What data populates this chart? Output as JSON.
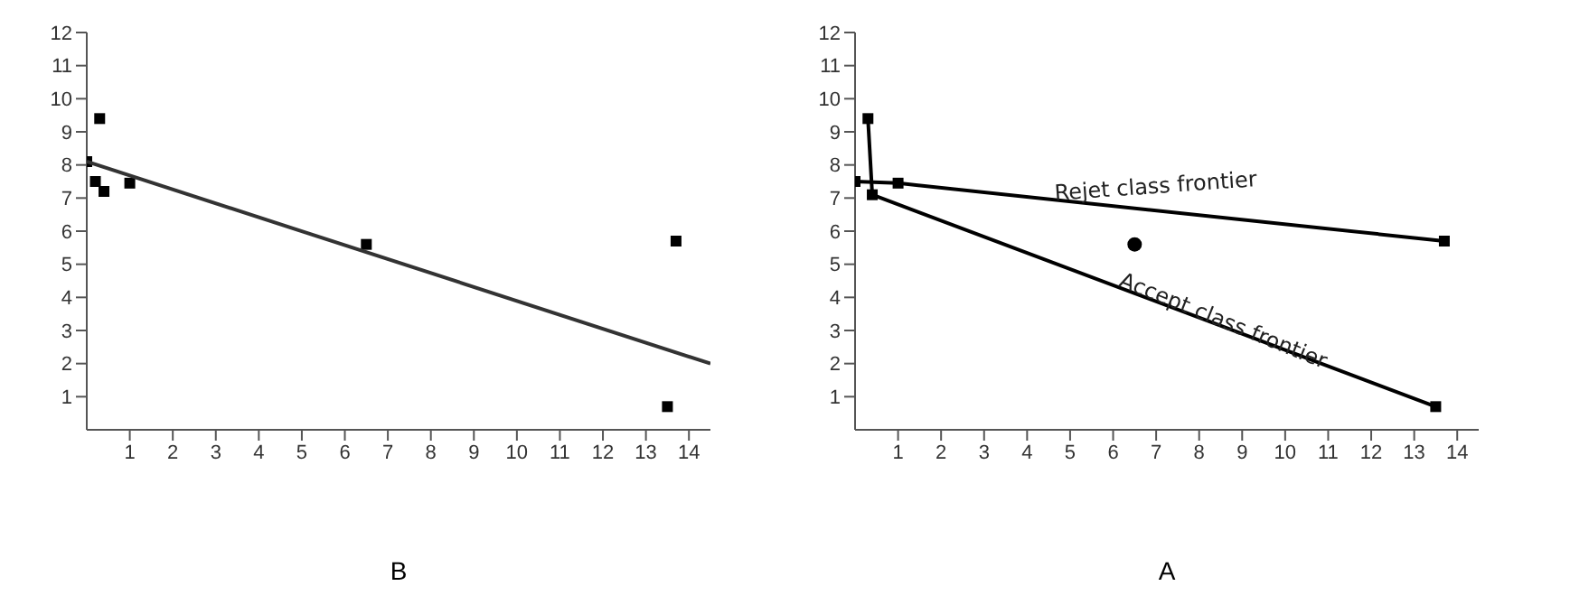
{
  "chart_data": [
    {
      "type": "scatter",
      "xlabel": "B",
      "xlim": [
        0,
        14.5
      ],
      "ylim": [
        0,
        12
      ],
      "xticks": [
        1,
        2,
        3,
        4,
        5,
        6,
        7,
        8,
        9,
        10,
        11,
        12,
        13,
        14
      ],
      "yticks": [
        1,
        2,
        3,
        4,
        5,
        6,
        7,
        8,
        9,
        10,
        11,
        12
      ],
      "grid": false,
      "legend": false,
      "series": [
        {
          "marker": "square",
          "color": "#000000",
          "x": [
            0,
            0.2,
            0.4,
            0.3,
            1,
            6.5,
            13.7,
            13.5
          ],
          "values": [
            8.1,
            7.5,
            7.2,
            9.4,
            7.45,
            5.6,
            5.7,
            0.7
          ]
        },
        {
          "type": "line",
          "marker": "none",
          "color": "#333333",
          "x": [
            0,
            14.5
          ],
          "values": [
            8.1,
            2.0
          ]
        }
      ]
    },
    {
      "type": "scatter",
      "xlabel": "A",
      "xlim": [
        0,
        14.5
      ],
      "ylim": [
        0,
        12
      ],
      "xticks": [
        1,
        2,
        3,
        4,
        5,
        6,
        7,
        8,
        9,
        10,
        11,
        12,
        13,
        14
      ],
      "yticks": [
        1,
        2,
        3,
        4,
        5,
        6,
        7,
        8,
        9,
        10,
        11,
        12
      ],
      "grid": false,
      "legend": false,
      "annotations": [
        {
          "text": "Rejet class frontier",
          "x": 7,
          "y": 6.6
        },
        {
          "text": "Accept class frontier",
          "x": 8.5,
          "y": 3.1
        }
      ],
      "series": [
        {
          "marker": "circle",
          "color": "#000000",
          "x": [
            6.5
          ],
          "values": [
            5.6
          ]
        },
        {
          "type": "line",
          "marker": "square",
          "color": "#000000",
          "x": [
            0,
            1,
            13.7
          ],
          "values": [
            7.5,
            7.45,
            5.7
          ]
        },
        {
          "type": "line",
          "marker": "square",
          "color": "#000000",
          "x": [
            0.3,
            0.4,
            13.5
          ],
          "values": [
            9.4,
            7.1,
            0.7
          ]
        }
      ]
    }
  ]
}
